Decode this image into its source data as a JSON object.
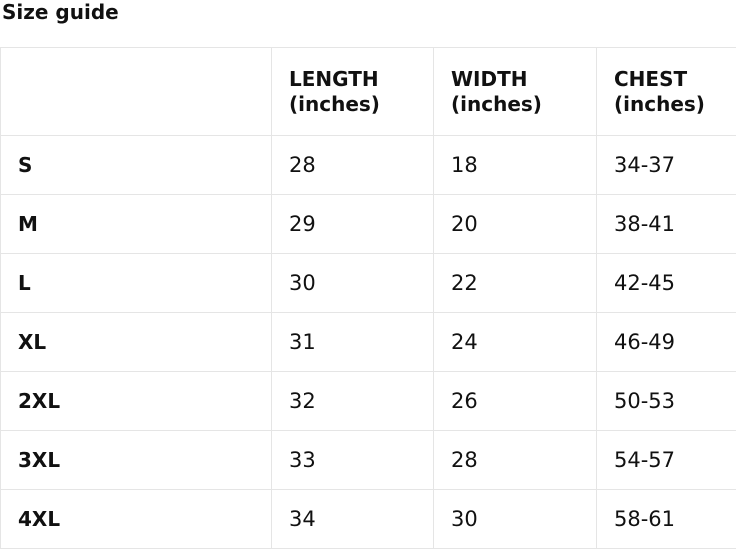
{
  "title": "Size guide",
  "colors": {
    "background": "#ffffff",
    "text": "#111111",
    "border": "#e5e5e5"
  },
  "size_table": {
    "headers": {
      "size": "",
      "length": "LENGTH (inches)",
      "width": "WIDTH (inches)",
      "chest": "CHEST (inches)"
    },
    "rows": [
      {
        "size": "S",
        "length": "28",
        "width": "18",
        "chest": "34-37"
      },
      {
        "size": "M",
        "length": "29",
        "width": "20",
        "chest": "38-41"
      },
      {
        "size": "L",
        "length": "30",
        "width": "22",
        "chest": "42-45"
      },
      {
        "size": "XL",
        "length": "31",
        "width": "24",
        "chest": "46-49"
      },
      {
        "size": "2XL",
        "length": "32",
        "width": "26",
        "chest": "50-53"
      },
      {
        "size": "3XL",
        "length": "33",
        "width": "28",
        "chest": "54-57"
      },
      {
        "size": "4XL",
        "length": "34",
        "width": "30",
        "chest": "58-61"
      }
    ]
  }
}
